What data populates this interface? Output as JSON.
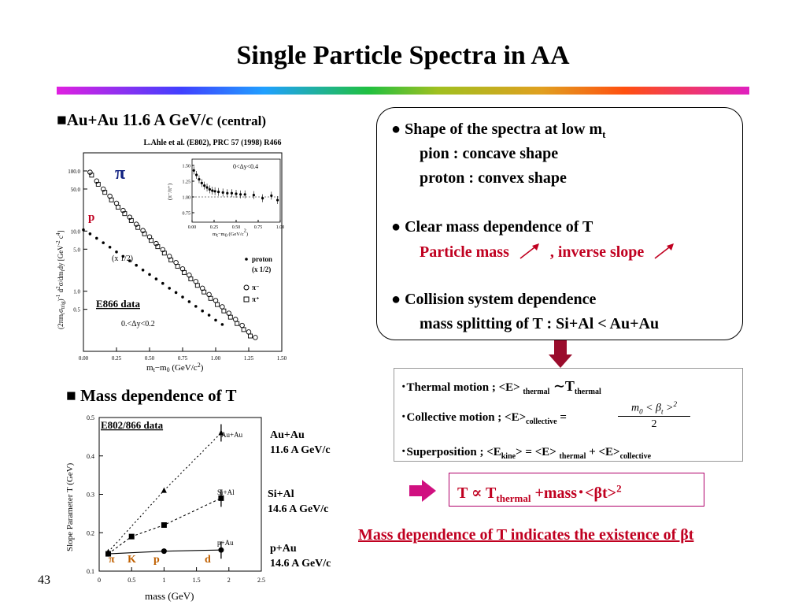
{
  "title": "Single Particle Spectra in AA",
  "section1": {
    "marker": "■",
    "text": "Au+Au 11.6 A GeV/c ",
    "sub": "(central)"
  },
  "reference": "L.Ahle et al. (E802), PRC 57 (1998) R466",
  "section2": {
    "marker": "■",
    "text": " Mass dependence of T"
  },
  "bullets": {
    "b1_head": "● Shape of the spectra at low m",
    "b1_head_sub": "t",
    "b1_pion": "pion     : concave shape",
    "b1_proton": "proton : convex  shape",
    "b2_head": "● Clear mass dependence of  T",
    "b2_line_a": "Particle mass",
    "b2_line_b": ", inverse slope",
    "b3_head": "● Collision system dependence",
    "b3_line": "mass splitting of T :  Si+Al < Au+Au"
  },
  "formulas": {
    "thermal_a": "･Thermal motion   ; <E> ",
    "thermal_sub": "thermal",
    "thermal_b": " ∼T",
    "thermal_sub2": "thermal",
    "collective_a": "･Collective motion ; <E>",
    "collective_sub": "collective",
    "collective_eq": " =",
    "frac_num_a": "m",
    "frac_num_sub": "0",
    "frac_num_b": " < β",
    "frac_num_sub2": "t",
    "frac_num_c": " >",
    "frac_num_sup": "2",
    "frac_den": "2",
    "super_a": "･Superposition ; <E",
    "super_sub1": "kine",
    "super_b": "> = <E> ",
    "super_sub2": "thermal",
    "super_c": " + <E>",
    "super_sub3": "collective"
  },
  "t_formula": {
    "a": "T ∝ T",
    "sub": "thermal",
    "b": " +mass･<βt>",
    "sup": "2"
  },
  "conclusion": "Mass dependence of T indicates the existence of  βt ",
  "page_number": "43",
  "spectra_plot": {
    "ylabel": "(2πm",
    "ylabel_sub": "t",
    "ylabel_b": "σ",
    "ylabel_sub2": "trig",
    "ylabel_c": ")",
    "ylabel_sup": "-1",
    "ylabel_d": " d",
    "ylabel_sup2": "2",
    "ylabel_e": "σ/dm",
    "ylabel_sub3": "t",
    "ylabel_f": "dy  [GeV",
    "ylabel_sup3": "-2",
    "ylabel_g": " c",
    "ylabel_sup4": "4",
    "ylabel_h": "]",
    "xlabel_a": "m",
    "xlabel_sub1": "t",
    "xlabel_b": "−m",
    "xlabel_sub2": "0",
    "xlabel_c": "  (GeV/c",
    "xlabel_sup": "2",
    "xlabel_d": ")",
    "yticks": [
      "100.0",
      "50.0",
      "10.0",
      "5.0",
      "1.0",
      "0.5"
    ],
    "xticks": [
      "0.00",
      "0.25",
      "0.50",
      "0.75",
      "1.00",
      "1.25",
      "1.50"
    ],
    "pi_label": "π",
    "p_label": "p",
    "half_label": "(x 1/2)",
    "dataset_label": "E866 data",
    "rapidity_label": "0.<Δy<0.2",
    "legend": {
      "proton": "proton",
      "half": "(x 1/2)",
      "piminus": "π⁻",
      "piplus": "π⁺"
    },
    "inset": {
      "ylabel": "(π⁻/π⁺)",
      "xlabel_a": "m",
      "xlabel_sub1": "t",
      "xlabel_b": "−m",
      "xlabel_sub2": "0",
      "xlabel_c": "  (GeV/c",
      "xlabel_sup": "2",
      "xlabel_d": ")",
      "yticks": [
        "1.50",
        "1.25",
        "1.00",
        "0.75"
      ],
      "xticks": [
        "0.00",
        "0.25",
        "0.50",
        "0.75",
        "1.00"
      ],
      "rapidity_label": "0<Δy<0.4"
    }
  },
  "slope_plot": {
    "dataset_label": "E802/866 data",
    "ylabel": "Slope Parameter T (GeV)",
    "xlabel": "mass (GeV)",
    "yticks": [
      "0.5",
      "0.4",
      "0.3",
      "0.2",
      "0.1"
    ],
    "xticks": [
      "0",
      "0.5",
      "1",
      "1.5",
      "2",
      "2.5"
    ],
    "series_labels": {
      "auau": "Au+Au",
      "sial": "Si+Al",
      "pau": "p+Au"
    },
    "particles": [
      "π",
      "K",
      "p",
      "d"
    ],
    "systems": [
      {
        "name": "Au+Au",
        "energy": "11.6 A GeV/c"
      },
      {
        "name": "Si+Al",
        "energy": "14.6 A GeV/c"
      },
      {
        "name": "p+Au",
        "energy": "14.6 A GeV/c"
      }
    ]
  },
  "chart_data": [
    {
      "type": "scatter",
      "ylog": true,
      "xlim": [
        0.0,
        1.5
      ],
      "ylim": [
        0.1,
        200
      ],
      "series": [
        {
          "name": "proton",
          "x": [
            0.0,
            0.05,
            0.1,
            0.15,
            0.2,
            0.25,
            0.3,
            0.35,
            0.4,
            0.45,
            0.5,
            0.55,
            0.6,
            0.65,
            0.7,
            0.75,
            0.8,
            0.85,
            0.9,
            0.95,
            1.0,
            1.05
          ],
          "y": [
            10.5,
            9.0,
            7.6,
            6.4,
            5.4,
            4.5,
            3.8,
            3.2,
            2.7,
            2.25,
            1.9,
            1.6,
            1.35,
            1.12,
            0.95,
            0.8,
            0.67,
            0.56,
            0.47,
            0.4,
            0.33,
            0.28
          ]
        },
        {
          "name": "π⁻",
          "x": [
            0.05,
            0.1,
            0.15,
            0.2,
            0.25,
            0.3,
            0.35,
            0.4,
            0.45,
            0.5,
            0.55,
            0.6,
            0.65,
            0.7,
            0.75,
            0.8,
            0.85,
            0.9,
            0.95,
            1.0,
            1.05,
            1.1,
            1.15,
            1.2,
            1.25,
            1.3
          ],
          "y": [
            95,
            68,
            50,
            38,
            29,
            22,
            17,
            13,
            10.2,
            8,
            6.2,
            4.9,
            3.8,
            3.0,
            2.35,
            1.85,
            1.45,
            1.12,
            0.88,
            0.7,
            0.55,
            0.43,
            0.34,
            0.27,
            0.21,
            0.17
          ]
        },
        {
          "name": "π⁺",
          "x": [
            0.05,
            0.1,
            0.15,
            0.2,
            0.25,
            0.3,
            0.35,
            0.4,
            0.45,
            0.5,
            0.55,
            0.6,
            0.65,
            0.7,
            0.75,
            0.8,
            0.85,
            0.9,
            0.95,
            1.0,
            1.05,
            1.1,
            1.15,
            1.2,
            1.25
          ],
          "y": [
            85,
            60,
            44,
            33,
            25,
            19.5,
            15,
            11.5,
            9,
            7,
            5.5,
            4.3,
            3.3,
            2.6,
            2.05,
            1.6,
            1.25,
            0.97,
            0.76,
            0.6,
            0.47,
            0.37,
            0.29,
            0.23,
            0.18
          ]
        }
      ]
    },
    {
      "type": "scatter",
      "title": "0<Δy<0.4",
      "ylabel": "(π⁻/π⁺)",
      "xlim": [
        0.0,
        1.0
      ],
      "ylim": [
        0.6,
        1.6
      ],
      "series": [
        {
          "name": "π⁻/π⁺",
          "x": [
            0.02,
            0.05,
            0.08,
            0.11,
            0.14,
            0.17,
            0.2,
            0.23,
            0.26,
            0.3,
            0.35,
            0.4,
            0.45,
            0.5,
            0.55,
            0.6,
            0.7,
            0.8,
            0.9,
            0.97
          ],
          "y": [
            1.42,
            1.35,
            1.28,
            1.22,
            1.18,
            1.15,
            1.12,
            1.1,
            1.09,
            1.08,
            1.07,
            1.06,
            1.06,
            1.05,
            1.04,
            1.04,
            1.03,
            0.98,
            1.02,
            0.95
          ]
        }
      ]
    },
    {
      "type": "line",
      "xlabel": "mass (GeV)",
      "ylabel": "Slope Parameter T (GeV)",
      "xlim": [
        0,
        2.5
      ],
      "ylim": [
        0.1,
        0.5
      ],
      "series": [
        {
          "name": "Au+Au",
          "x": [
            0.14,
            1.0,
            1.88
          ],
          "y": [
            0.15,
            0.31,
            0.46
          ]
        },
        {
          "name": "Si+Al",
          "x": [
            0.14,
            0.5,
            1.0,
            1.88
          ],
          "y": [
            0.145,
            0.19,
            0.22,
            0.29
          ]
        },
        {
          "name": "p+Au",
          "x": [
            0.14,
            1.0,
            1.88
          ],
          "y": [
            0.145,
            0.152,
            0.155
          ]
        }
      ]
    }
  ]
}
